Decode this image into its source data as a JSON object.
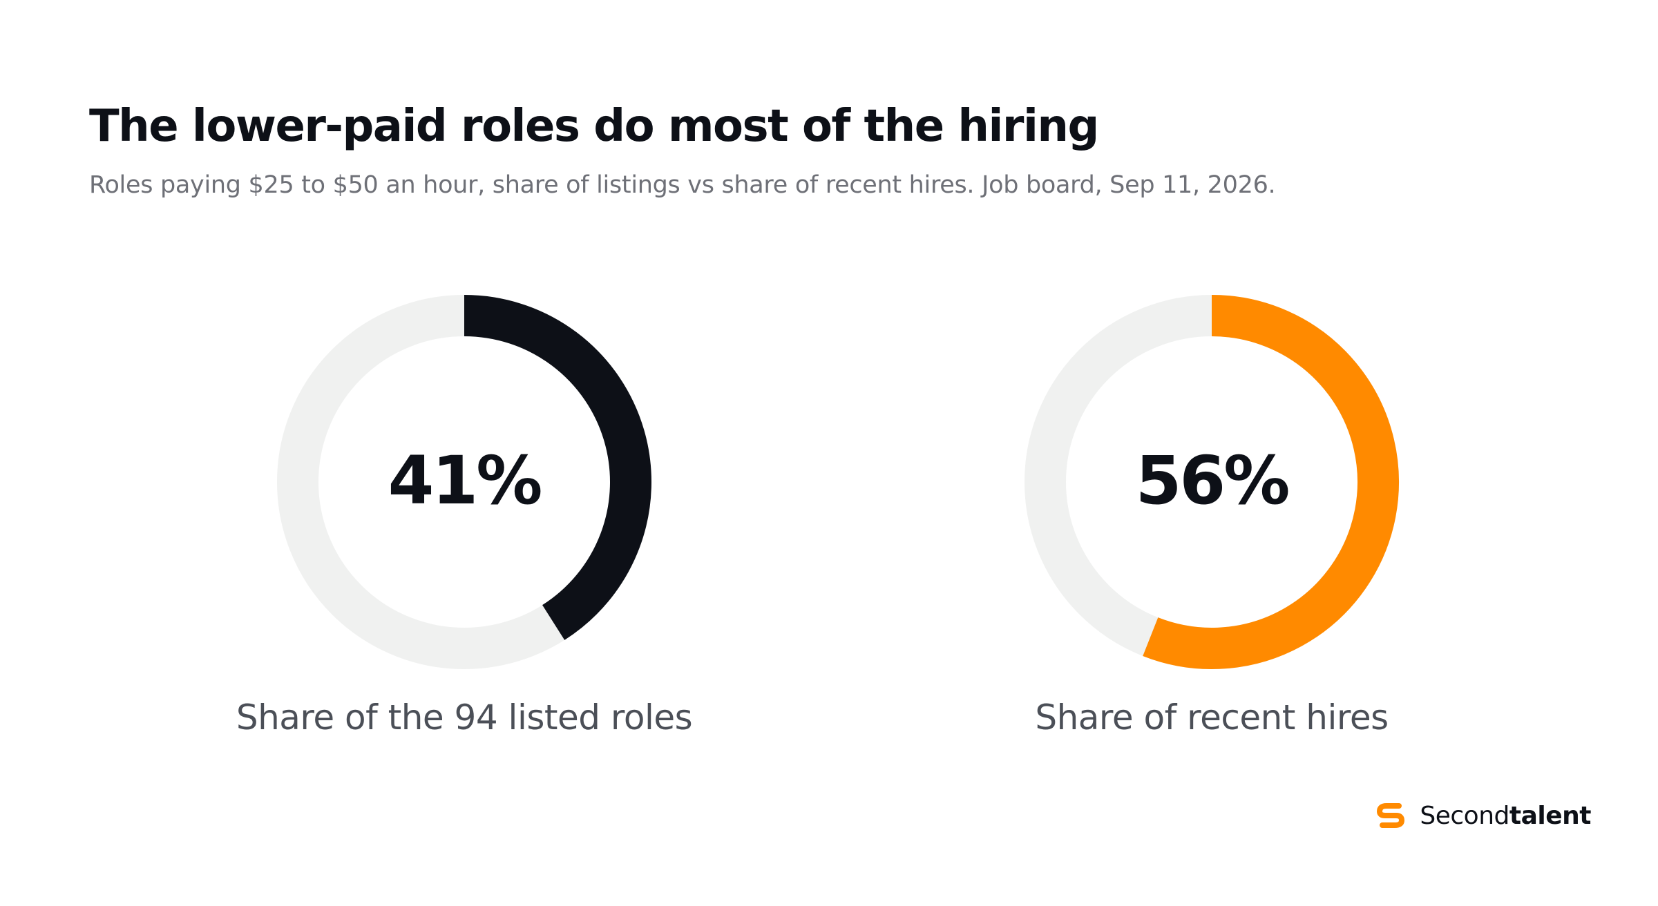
{
  "header": {
    "title": "The lower-paid roles do most of the hiring",
    "subtitle": "Roles paying $25 to $50 an hour, share of listings vs share of recent hires. Job board, Sep 11, 2026."
  },
  "chart_data": [
    {
      "type": "pie",
      "variant": "donut",
      "title": "",
      "value": 41,
      "value_label": "41%",
      "label": "Share of the 94 listed roles",
      "fill_color": "#0d1017",
      "track_color": "#f0f1f0"
    },
    {
      "type": "pie",
      "variant": "donut",
      "title": "",
      "value": 56,
      "value_label": "56%",
      "label": "Share of recent hires",
      "fill_color": "#ff8a00",
      "track_color": "#f0f1f0"
    }
  ],
  "brand": {
    "name_light": "Second",
    "name_bold": "talent",
    "logo_icon": "secondtalent-logo-icon",
    "logo_color": "#ff8a00"
  }
}
